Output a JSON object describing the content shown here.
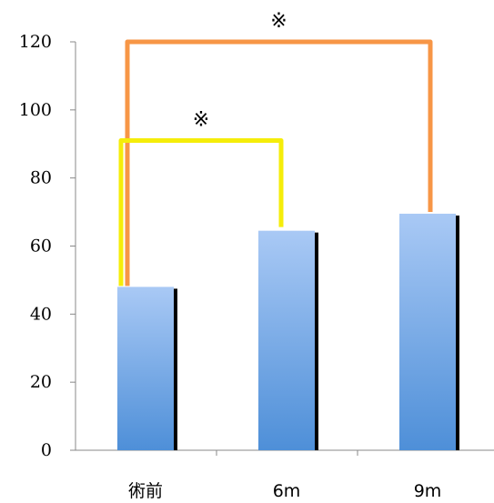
{
  "chart_data": {
    "type": "bar",
    "title": "",
    "xlabel": "",
    "ylabel": "",
    "categories": [
      "術前",
      "6m",
      "9m"
    ],
    "values": [
      48,
      64.5,
      69.5
    ],
    "ylim": [
      0,
      120
    ],
    "yticks": [
      0,
      20,
      40,
      60,
      80,
      100,
      120
    ],
    "grid": false,
    "legend": "none",
    "bar_color_top": "#a9c9f5",
    "bar_color_bottom": "#4e8fd8",
    "shadow_color": "#000000",
    "significance": [
      {
        "from": 0,
        "to": 2,
        "top": 120,
        "label": "※",
        "color": "#f79646"
      },
      {
        "from": 0,
        "to": 1,
        "top": 91,
        "label": "※",
        "color": "#f5ed0a"
      }
    ]
  }
}
